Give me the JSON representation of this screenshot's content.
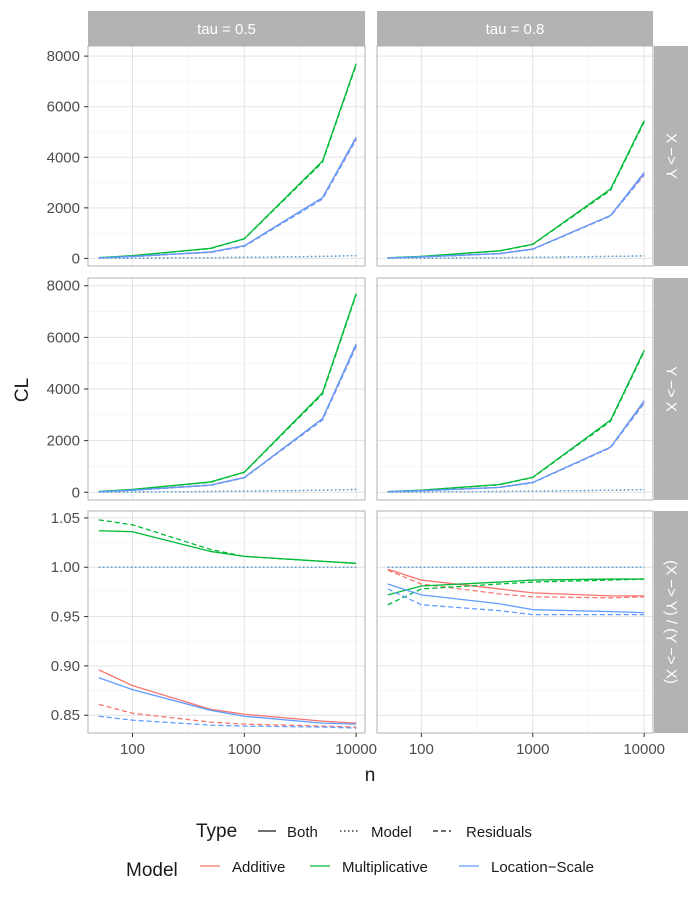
{
  "chart_data": {
    "type": "line",
    "facet_columns": [
      "tau = 0.5",
      "tau = 0.8"
    ],
    "facet_rows": [
      "X −> Y",
      "Y −> X",
      "(X −> Y) / (Y −> X)"
    ],
    "xlabel": "n",
    "ylabel": "CL",
    "x_scale": "log",
    "x": [
      50,
      100,
      500,
      1000,
      5000,
      10000
    ],
    "x_ticks": [
      100,
      1000,
      10000
    ],
    "x_tick_labels": [
      "100",
      "1000",
      "10000"
    ],
    "xlim": [
      40,
      12000
    ],
    "rows": [
      {
        "ylim": [
          -300,
          8400
        ],
        "y_ticks": [
          0,
          2000,
          4000,
          6000,
          8000
        ],
        "y_tick_labels": [
          "0",
          "2000",
          "4000",
          "6000",
          "8000"
        ]
      },
      {
        "ylim": [
          -300,
          8300
        ],
        "y_ticks": [
          0,
          2000,
          4000,
          6000,
          8000
        ],
        "y_tick_labels": [
          "0",
          "2000",
          "4000",
          "6000",
          "8000"
        ]
      },
      {
        "ylim": [
          0.832,
          1.057
        ],
        "y_ticks": [
          0.85,
          0.9,
          0.95,
          1.0,
          1.05
        ],
        "y_tick_labels": [
          "0.85",
          "0.90",
          "0.95",
          "1.00",
          "1.05"
        ]
      }
    ],
    "colors": {
      "Additive": "#F8766D",
      "Multiplicative": "#00BA38",
      "Location-Scale": "#619CFF"
    },
    "linetypes": {
      "Both": "solid",
      "Model": "dotted",
      "Residuals": "dashed"
    },
    "series": [
      {
        "panel": [
          0,
          0
        ],
        "model": "Additive",
        "type": "Both",
        "values": [
          20,
          80,
          250,
          500,
          2400,
          4750
        ]
      },
      {
        "panel": [
          0,
          0
        ],
        "model": "Additive",
        "type": "Model",
        "values": [
          5,
          10,
          30,
          40,
          80,
          110
        ]
      },
      {
        "panel": [
          0,
          0
        ],
        "model": "Additive",
        "type": "Residuals",
        "values": [
          18,
          75,
          240,
          480,
          2350,
          4700
        ]
      },
      {
        "panel": [
          0,
          0
        ],
        "model": "Multiplicative",
        "type": "Both",
        "values": [
          30,
          110,
          400,
          780,
          3850,
          7700
        ]
      },
      {
        "panel": [
          0,
          0
        ],
        "model": "Multiplicative",
        "type": "Model",
        "values": [
          5,
          10,
          30,
          40,
          80,
          110
        ]
      },
      {
        "panel": [
          0,
          0
        ],
        "model": "Multiplicative",
        "type": "Residuals",
        "values": [
          28,
          105,
          390,
          770,
          3800,
          7650
        ]
      },
      {
        "panel": [
          0,
          0
        ],
        "model": "Location-Scale",
        "type": "Both",
        "values": [
          20,
          80,
          260,
          500,
          2400,
          4800
        ]
      },
      {
        "panel": [
          0,
          0
        ],
        "model": "Location-Scale",
        "type": "Model",
        "values": [
          5,
          10,
          30,
          40,
          80,
          110
        ]
      },
      {
        "panel": [
          0,
          0
        ],
        "model": "Location-Scale",
        "type": "Residuals",
        "values": [
          18,
          75,
          240,
          480,
          2350,
          4700
        ]
      },
      {
        "panel": [
          0,
          1
        ],
        "model": "Additive",
        "type": "Both",
        "values": [
          20,
          60,
          190,
          370,
          1700,
          3350
        ]
      },
      {
        "panel": [
          0,
          1
        ],
        "model": "Additive",
        "type": "Model",
        "values": [
          5,
          10,
          30,
          40,
          80,
          100
        ]
      },
      {
        "panel": [
          0,
          1
        ],
        "model": "Additive",
        "type": "Residuals",
        "values": [
          18,
          58,
          185,
          360,
          1680,
          3300
        ]
      },
      {
        "panel": [
          0,
          1
        ],
        "model": "Multiplicative",
        "type": "Both",
        "values": [
          25,
          80,
          300,
          560,
          2750,
          5450
        ]
      },
      {
        "panel": [
          0,
          1
        ],
        "model": "Multiplicative",
        "type": "Model",
        "values": [
          5,
          10,
          30,
          40,
          80,
          100
        ]
      },
      {
        "panel": [
          0,
          1
        ],
        "model": "Multiplicative",
        "type": "Residuals",
        "values": [
          24,
          78,
          290,
          550,
          2700,
          5400
        ]
      },
      {
        "panel": [
          0,
          1
        ],
        "model": "Location-Scale",
        "type": "Both",
        "values": [
          20,
          60,
          190,
          370,
          1700,
          3400
        ]
      },
      {
        "panel": [
          0,
          1
        ],
        "model": "Location-Scale",
        "type": "Model",
        "values": [
          5,
          10,
          30,
          40,
          80,
          100
        ]
      },
      {
        "panel": [
          0,
          1
        ],
        "model": "Location-Scale",
        "type": "Residuals",
        "values": [
          18,
          58,
          185,
          360,
          1680,
          3300
        ]
      },
      {
        "panel": [
          1,
          0
        ],
        "model": "Additive",
        "type": "Both",
        "values": [
          20,
          80,
          280,
          570,
          2850,
          5700
        ]
      },
      {
        "panel": [
          1,
          0
        ],
        "model": "Additive",
        "type": "Model",
        "values": [
          5,
          10,
          30,
          40,
          80,
          110
        ]
      },
      {
        "panel": [
          1,
          0
        ],
        "model": "Additive",
        "type": "Residuals",
        "values": [
          18,
          75,
          270,
          560,
          2800,
          5650
        ]
      },
      {
        "panel": [
          1,
          0
        ],
        "model": "Multiplicative",
        "type": "Both",
        "values": [
          30,
          110,
          400,
          780,
          3850,
          7700
        ]
      },
      {
        "panel": [
          1,
          0
        ],
        "model": "Multiplicative",
        "type": "Model",
        "values": [
          5,
          10,
          30,
          40,
          80,
          110
        ]
      },
      {
        "panel": [
          1,
          0
        ],
        "model": "Multiplicative",
        "type": "Residuals",
        "values": [
          28,
          105,
          390,
          770,
          3800,
          7650
        ]
      },
      {
        "panel": [
          1,
          0
        ],
        "model": "Location-Scale",
        "type": "Both",
        "values": [
          20,
          80,
          280,
          570,
          2850,
          5750
        ]
      },
      {
        "panel": [
          1,
          0
        ],
        "model": "Location-Scale",
        "type": "Model",
        "values": [
          5,
          10,
          30,
          40,
          80,
          110
        ]
      },
      {
        "panel": [
          1,
          0
        ],
        "model": "Location-Scale",
        "type": "Residuals",
        "values": [
          18,
          75,
          270,
          560,
          2800,
          5650
        ]
      },
      {
        "panel": [
          1,
          1
        ],
        "model": "Additive",
        "type": "Both",
        "values": [
          20,
          60,
          190,
          380,
          1750,
          3500
        ]
      },
      {
        "panel": [
          1,
          1
        ],
        "model": "Additive",
        "type": "Model",
        "values": [
          5,
          10,
          30,
          40,
          80,
          100
        ]
      },
      {
        "panel": [
          1,
          1
        ],
        "model": "Additive",
        "type": "Residuals",
        "values": [
          18,
          58,
          185,
          370,
          1730,
          3450
        ]
      },
      {
        "panel": [
          1,
          1
        ],
        "model": "Multiplicative",
        "type": "Both",
        "values": [
          25,
          80,
          300,
          580,
          2800,
          5500
        ]
      },
      {
        "panel": [
          1,
          1
        ],
        "model": "Multiplicative",
        "type": "Model",
        "values": [
          5,
          10,
          30,
          40,
          80,
          100
        ]
      },
      {
        "panel": [
          1,
          1
        ],
        "model": "Multiplicative",
        "type": "Residuals",
        "values": [
          24,
          78,
          290,
          570,
          2750,
          5450
        ]
      },
      {
        "panel": [
          1,
          1
        ],
        "model": "Location-Scale",
        "type": "Both",
        "values": [
          20,
          60,
          190,
          380,
          1750,
          3550
        ]
      },
      {
        "panel": [
          1,
          1
        ],
        "model": "Location-Scale",
        "type": "Model",
        "values": [
          5,
          10,
          30,
          40,
          80,
          100
        ]
      },
      {
        "panel": [
          1,
          1
        ],
        "model": "Location-Scale",
        "type": "Residuals",
        "values": [
          18,
          58,
          185,
          370,
          1730,
          3450
        ]
      },
      {
        "panel": [
          2,
          0
        ],
        "model": "Additive",
        "type": "Both",
        "values": [
          0.896,
          0.88,
          0.856,
          0.851,
          0.844,
          0.842
        ]
      },
      {
        "panel": [
          2,
          0
        ],
        "model": "Additive",
        "type": "Model",
        "values": [
          1.0,
          1.0,
          1.0,
          1.0,
          1.0,
          1.0
        ]
      },
      {
        "panel": [
          2,
          0
        ],
        "model": "Additive",
        "type": "Residuals",
        "values": [
          0.861,
          0.852,
          0.843,
          0.841,
          0.839,
          0.838
        ]
      },
      {
        "panel": [
          2,
          0
        ],
        "model": "Multiplicative",
        "type": "Both",
        "values": [
          1.037,
          1.036,
          1.016,
          1.011,
          1.006,
          1.004
        ]
      },
      {
        "panel": [
          2,
          0
        ],
        "model": "Multiplicative",
        "type": "Model",
        "values": [
          1.0,
          1.0,
          1.0,
          1.0,
          1.0,
          1.0
        ]
      },
      {
        "panel": [
          2,
          0
        ],
        "model": "Multiplicative",
        "type": "Residuals",
        "values": [
          1.048,
          1.043,
          1.018,
          1.011,
          1.006,
          1.004
        ]
      },
      {
        "panel": [
          2,
          0
        ],
        "model": "Location-Scale",
        "type": "Both",
        "values": [
          0.888,
          0.876,
          0.855,
          0.849,
          0.842,
          0.841
        ]
      },
      {
        "panel": [
          2,
          0
        ],
        "model": "Location-Scale",
        "type": "Model",
        "values": [
          1.0,
          1.0,
          1.0,
          1.0,
          1.0,
          1.0
        ]
      },
      {
        "panel": [
          2,
          0
        ],
        "model": "Location-Scale",
        "type": "Residuals",
        "values": [
          0.849,
          0.845,
          0.84,
          0.839,
          0.838,
          0.837
        ]
      },
      {
        "panel": [
          2,
          1
        ],
        "model": "Additive",
        "type": "Both",
        "values": [
          0.998,
          0.987,
          0.978,
          0.974,
          0.971,
          0.971
        ]
      },
      {
        "panel": [
          2,
          1
        ],
        "model": "Additive",
        "type": "Model",
        "values": [
          1.0,
          1.0,
          1.0,
          1.0,
          1.0,
          1.0
        ]
      },
      {
        "panel": [
          2,
          1
        ],
        "model": "Additive",
        "type": "Residuals",
        "values": [
          0.997,
          0.983,
          0.973,
          0.97,
          0.969,
          0.97
        ]
      },
      {
        "panel": [
          2,
          1
        ],
        "model": "Multiplicative",
        "type": "Both",
        "values": [
          0.972,
          0.981,
          0.985,
          0.987,
          0.988,
          0.988
        ]
      },
      {
        "panel": [
          2,
          1
        ],
        "model": "Multiplicative",
        "type": "Model",
        "values": [
          1.0,
          1.0,
          1.0,
          1.0,
          1.0,
          1.0
        ]
      },
      {
        "panel": [
          2,
          1
        ],
        "model": "Multiplicative",
        "type": "Residuals",
        "values": [
          0.962,
          0.978,
          0.983,
          0.985,
          0.987,
          0.988
        ]
      },
      {
        "panel": [
          2,
          1
        ],
        "model": "Location-Scale",
        "type": "Both",
        "values": [
          0.983,
          0.972,
          0.963,
          0.957,
          0.955,
          0.954
        ]
      },
      {
        "panel": [
          2,
          1
        ],
        "model": "Location-Scale",
        "type": "Model",
        "values": [
          1.0,
          1.0,
          1.0,
          1.0,
          1.0,
          1.0
        ]
      },
      {
        "panel": [
          2,
          1
        ],
        "model": "Location-Scale",
        "type": "Residuals",
        "values": [
          0.978,
          0.962,
          0.956,
          0.952,
          0.952,
          0.952
        ]
      }
    ],
    "legend": {
      "placement": "bottom",
      "type_title": "Type",
      "type_items": [
        "Both",
        "Model",
        "Residuals"
      ],
      "model_title": "Model",
      "model_items": [
        "Additive",
        "Multiplicative",
        "Location−Scale"
      ]
    }
  }
}
